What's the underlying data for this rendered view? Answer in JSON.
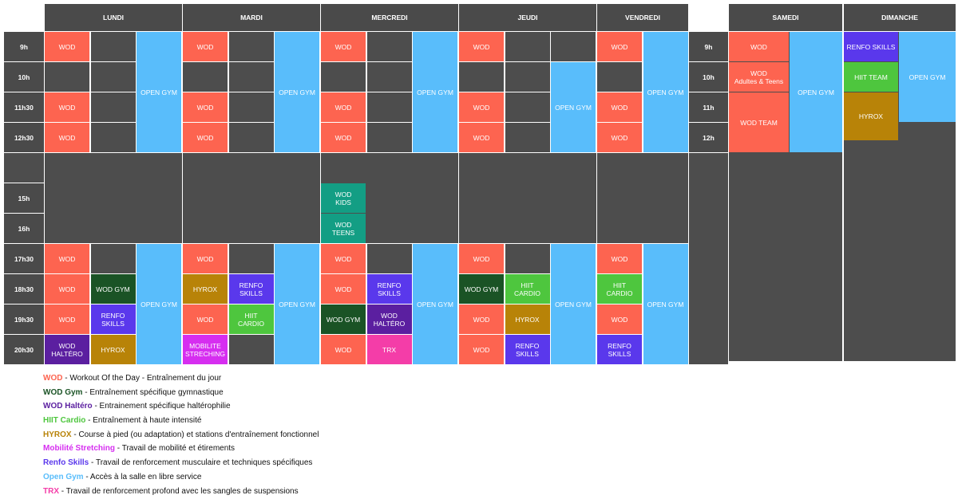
{
  "days": {
    "lundi": "LUNDI",
    "mardi": "MARDI",
    "mercredi": "MERCREDI",
    "jeudi": "JEUDI",
    "vendredi": "VENDREDI",
    "samedi": "SAMEDI",
    "dimanche": "DIMANCHE"
  },
  "weekday_times": [
    "9h",
    "10h",
    "11h30",
    "12h30",
    "",
    "15h",
    "16h",
    "17h30",
    "18h30",
    "19h30",
    "20h30"
  ],
  "weekend_times": [
    "9h",
    "10h",
    "11h",
    "12h"
  ],
  "colors": {
    "wod": "#fd6450",
    "wod_gym": "#1a5325",
    "wod_haltero": "#5b1fa0",
    "hiit": "#4ec63e",
    "hyrox": "#b88308",
    "mobilite": "#d62ef0",
    "renfo": "#5a38ec",
    "open_gym": "#59bdfb",
    "trx": "#f43da8",
    "wod_kids": "#139e84",
    "slot_bg": "#4d4d4d"
  },
  "classes": [
    {
      "day": "lundi",
      "col": 0,
      "row": 0,
      "span": 1,
      "label": "WOD",
      "type": "wod"
    },
    {
      "day": "lundi",
      "col": 0,
      "row": 2,
      "span": 1,
      "label": "WOD",
      "type": "wod"
    },
    {
      "day": "lundi",
      "col": 0,
      "row": 3,
      "span": 1,
      "label": "WOD",
      "type": "wod"
    },
    {
      "day": "lundi",
      "col": 2,
      "row": 0,
      "span": 4,
      "label": "OPEN GYM",
      "type": "open_gym"
    },
    {
      "day": "lundi",
      "col": 0,
      "row": 7,
      "span": 1,
      "label": "WOD",
      "type": "wod"
    },
    {
      "day": "lundi",
      "col": 0,
      "row": 8,
      "span": 1,
      "label": "WOD",
      "type": "wod"
    },
    {
      "day": "lundi",
      "col": 0,
      "row": 9,
      "span": 1,
      "label": "WOD",
      "type": "wod"
    },
    {
      "day": "lundi",
      "col": 0,
      "row": 10,
      "span": 1,
      "label": "WOD\nHALTÉRO",
      "type": "wod_haltero"
    },
    {
      "day": "lundi",
      "col": 1,
      "row": 8,
      "span": 1,
      "label": "WOD GYM",
      "type": "wod_gym"
    },
    {
      "day": "lundi",
      "col": 1,
      "row": 9,
      "span": 1,
      "label": "RENFO\nSKILLS",
      "type": "renfo"
    },
    {
      "day": "lundi",
      "col": 1,
      "row": 10,
      "span": 1,
      "label": "HYROX",
      "type": "hyrox"
    },
    {
      "day": "lundi",
      "col": 2,
      "row": 7,
      "span": 4,
      "label": "OPEN GYM",
      "type": "open_gym"
    },
    {
      "day": "mardi",
      "col": 0,
      "row": 0,
      "span": 1,
      "label": "WOD",
      "type": "wod"
    },
    {
      "day": "mardi",
      "col": 0,
      "row": 2,
      "span": 1,
      "label": "WOD",
      "type": "wod"
    },
    {
      "day": "mardi",
      "col": 0,
      "row": 3,
      "span": 1,
      "label": "WOD",
      "type": "wod"
    },
    {
      "day": "mardi",
      "col": 2,
      "row": 0,
      "span": 4,
      "label": "OPEN GYM",
      "type": "open_gym"
    },
    {
      "day": "mardi",
      "col": 0,
      "row": 7,
      "span": 1,
      "label": "WOD",
      "type": "wod"
    },
    {
      "day": "mardi",
      "col": 0,
      "row": 8,
      "span": 1,
      "label": "HYROX",
      "type": "hyrox"
    },
    {
      "day": "mardi",
      "col": 0,
      "row": 9,
      "span": 1,
      "label": "WOD",
      "type": "wod"
    },
    {
      "day": "mardi",
      "col": 0,
      "row": 10,
      "span": 1,
      "label": "MOBILITE\nSTRECHING",
      "type": "mobilite"
    },
    {
      "day": "mardi",
      "col": 1,
      "row": 8,
      "span": 1,
      "label": "RENFO\nSKILLS",
      "type": "renfo"
    },
    {
      "day": "mardi",
      "col": 1,
      "row": 9,
      "span": 1,
      "label": "HIIT\nCARDIO",
      "type": "hiit"
    },
    {
      "day": "mardi",
      "col": 2,
      "row": 7,
      "span": 4,
      "label": "OPEN GYM",
      "type": "open_gym"
    },
    {
      "day": "mercredi",
      "col": 0,
      "row": 0,
      "span": 1,
      "label": "WOD",
      "type": "wod"
    },
    {
      "day": "mercredi",
      "col": 0,
      "row": 2,
      "span": 1,
      "label": "WOD",
      "type": "wod"
    },
    {
      "day": "mercredi",
      "col": 0,
      "row": 3,
      "span": 1,
      "label": "WOD",
      "type": "wod"
    },
    {
      "day": "mercredi",
      "col": 2,
      "row": 0,
      "span": 4,
      "label": "OPEN GYM",
      "type": "open_gym"
    },
    {
      "day": "mercredi",
      "col": 0,
      "row": 5,
      "span": 1,
      "label": "WOD\nKIDS",
      "type": "wod_kids"
    },
    {
      "day": "mercredi",
      "col": 0,
      "row": 6,
      "span": 1,
      "label": "WOD\nTEENS",
      "type": "wod_kids"
    },
    {
      "day": "mercredi",
      "col": 0,
      "row": 7,
      "span": 1,
      "label": "WOD",
      "type": "wod"
    },
    {
      "day": "mercredi",
      "col": 0,
      "row": 8,
      "span": 1,
      "label": "WOD",
      "type": "wod"
    },
    {
      "day": "mercredi",
      "col": 0,
      "row": 9,
      "span": 1,
      "label": "WOD GYM",
      "type": "wod_gym"
    },
    {
      "day": "mercredi",
      "col": 0,
      "row": 10,
      "span": 1,
      "label": "WOD",
      "type": "wod"
    },
    {
      "day": "mercredi",
      "col": 1,
      "row": 8,
      "span": 1,
      "label": "RENFO\nSKILLS",
      "type": "renfo"
    },
    {
      "day": "mercredi",
      "col": 1,
      "row": 9,
      "span": 1,
      "label": "WOD\nHALTÉRO",
      "type": "wod_haltero"
    },
    {
      "day": "mercredi",
      "col": 1,
      "row": 10,
      "span": 1,
      "label": "TRX",
      "type": "trx"
    },
    {
      "day": "mercredi",
      "col": 2,
      "row": 7,
      "span": 4,
      "label": "OPEN GYM",
      "type": "open_gym"
    },
    {
      "day": "jeudi",
      "col": 0,
      "row": 0,
      "span": 1,
      "label": "WOD",
      "type": "wod"
    },
    {
      "day": "jeudi",
      "col": 0,
      "row": 2,
      "span": 1,
      "label": "WOD",
      "type": "wod"
    },
    {
      "day": "jeudi",
      "col": 0,
      "row": 3,
      "span": 1,
      "label": "WOD",
      "type": "wod"
    },
    {
      "day": "jeudi",
      "col": 2,
      "row": 1,
      "span": 3,
      "label": "OPEN GYM",
      "type": "open_gym"
    },
    {
      "day": "jeudi",
      "col": 0,
      "row": 7,
      "span": 1,
      "label": "WOD",
      "type": "wod"
    },
    {
      "day": "jeudi",
      "col": 0,
      "row": 8,
      "span": 1,
      "label": "WOD GYM",
      "type": "wod_gym"
    },
    {
      "day": "jeudi",
      "col": 0,
      "row": 9,
      "span": 1,
      "label": "WOD",
      "type": "wod"
    },
    {
      "day": "jeudi",
      "col": 0,
      "row": 10,
      "span": 1,
      "label": "WOD",
      "type": "wod"
    },
    {
      "day": "jeudi",
      "col": 1,
      "row": 8,
      "span": 1,
      "label": "HIIT\nCARDIO",
      "type": "hiit"
    },
    {
      "day": "jeudi",
      "col": 1,
      "row": 9,
      "span": 1,
      "label": "HYROX",
      "type": "hyrox"
    },
    {
      "day": "jeudi",
      "col": 1,
      "row": 10,
      "span": 1,
      "label": "RENFO\nSKILLS",
      "type": "renfo"
    },
    {
      "day": "jeudi",
      "col": 2,
      "row": 7,
      "span": 4,
      "label": "OPEN GYM",
      "type": "open_gym"
    },
    {
      "day": "vendredi",
      "col": 0,
      "row": 0,
      "span": 1,
      "label": "WOD",
      "type": "wod"
    },
    {
      "day": "vendredi",
      "col": 0,
      "row": 2,
      "span": 1,
      "label": "WOD",
      "type": "wod"
    },
    {
      "day": "vendredi",
      "col": 0,
      "row": 3,
      "span": 1,
      "label": "WOD",
      "type": "wod"
    },
    {
      "day": "vendredi",
      "col": 1,
      "row": 0,
      "span": 4,
      "label": "OPEN GYM",
      "type": "open_gym"
    },
    {
      "day": "vendredi",
      "col": 0,
      "row": 7,
      "span": 1,
      "label": "WOD",
      "type": "wod"
    },
    {
      "day": "vendredi",
      "col": 0,
      "row": 8,
      "span": 1,
      "label": "HIIT\nCARDIO",
      "type": "hiit"
    },
    {
      "day": "vendredi",
      "col": 0,
      "row": 9,
      "span": 1,
      "label": "WOD",
      "type": "wod"
    },
    {
      "day": "vendredi",
      "col": 0,
      "row": 10,
      "span": 1,
      "label": "RENFO\nSKILLS",
      "type": "renfo"
    },
    {
      "day": "vendredi",
      "col": 1,
      "row": 7,
      "span": 4,
      "label": "OPEN GYM",
      "type": "open_gym"
    },
    {
      "day": "samedi",
      "col": 0,
      "row": 0,
      "span": 1,
      "label": "WOD",
      "type": "wod"
    },
    {
      "day": "samedi",
      "col": 0,
      "row": 1,
      "span": 1,
      "label": "WOD\nAdultes & Teens",
      "type": "wod"
    },
    {
      "day": "samedi",
      "col": 0,
      "row": 2,
      "span": 2,
      "label": "WOD TEAM",
      "type": "wod"
    },
    {
      "day": "samedi",
      "col": 1,
      "row": 0,
      "span": 4,
      "label": "OPEN GYM",
      "type": "open_gym"
    },
    {
      "day": "dimanche",
      "col": 0,
      "row": 0,
      "span": 1,
      "label": "RENFO SKILLS",
      "type": "renfo"
    },
    {
      "day": "dimanche",
      "col": 0,
      "row": 1,
      "span": 1,
      "label": "HIIT TEAM",
      "type": "hiit"
    },
    {
      "day": "dimanche",
      "col": 0,
      "row": 2,
      "span": 1.6,
      "label": "HYROX",
      "type": "hyrox"
    },
    {
      "day": "dimanche",
      "col": 1,
      "row": 0,
      "span": 3,
      "label": "OPEN GYM",
      "type": "open_gym"
    }
  ],
  "legend": [
    {
      "key": "WOD",
      "desc": " - Workout Of the Day - Entraînement du jour",
      "type": "wod"
    },
    {
      "key": "WOD Gym",
      "desc": " - Entraînement spécifique gymnastique",
      "type": "wod_gym"
    },
    {
      "key": "WOD Haltéro",
      "desc": " - Entrainement spécifique haltérophilie",
      "type": "wod_haltero"
    },
    {
      "key": "HIIT Cardio",
      "desc": " - Entraînement à haute intensité",
      "type": "hiit"
    },
    {
      "key": "HYROX",
      "desc": " - Course à pied (ou adaptation) et stations d'entraînement fonctionnel",
      "type": "hyrox"
    },
    {
      "key": "Mobilité Stretching",
      "desc": " - Travail de mobilité et étirements",
      "type": "mobilite"
    },
    {
      "key": "Renfo Skills",
      "desc": " - Travail de renforcement musculaire et techniques spécifiques",
      "type": "renfo"
    },
    {
      "key": "Open Gym",
      "desc": " - Accès à la salle en libre service",
      "type": "open_gym"
    },
    {
      "key": "TRX",
      "desc": " - Travail de renforcement profond avec les sangles de suspensions",
      "type": "trx"
    }
  ]
}
